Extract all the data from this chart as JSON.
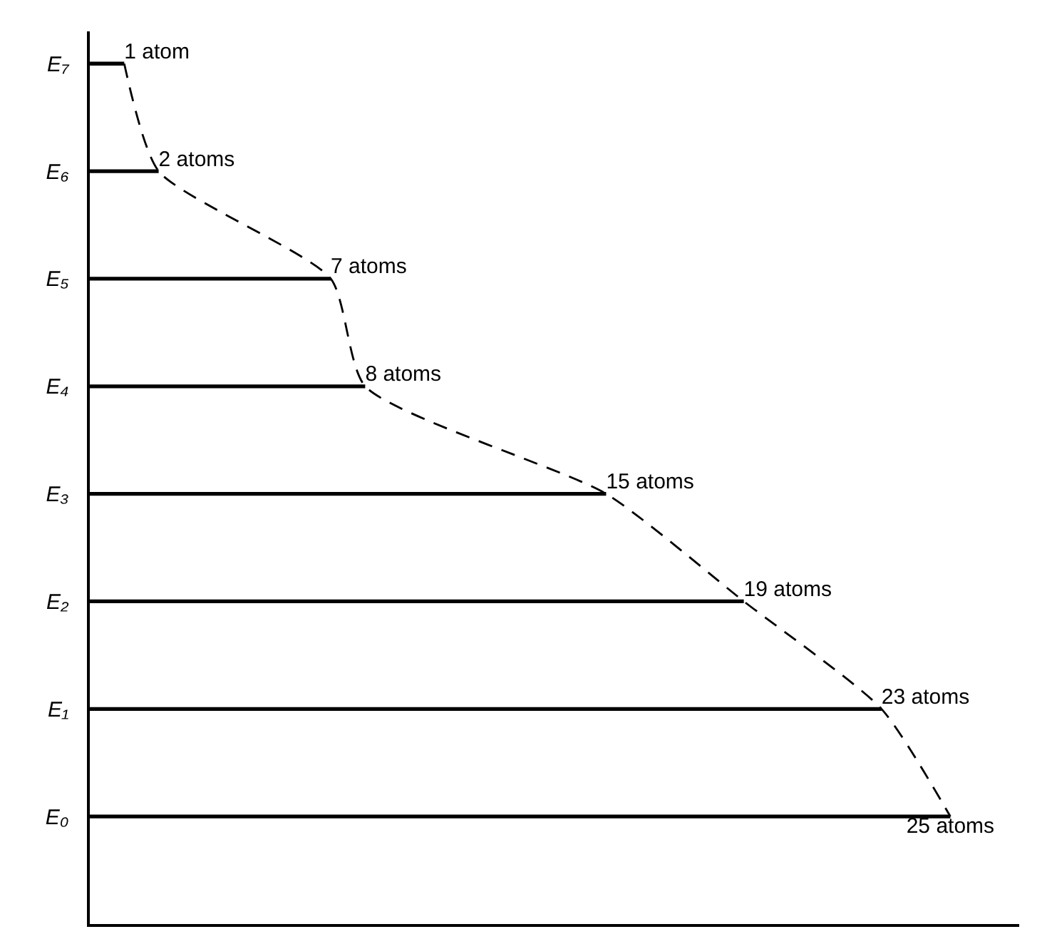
{
  "chart_data": {
    "type": "bar",
    "orientation": "horizontal",
    "tick_labels": "y",
    "categories": [
      "E₇",
      "E₆",
      "E₅",
      "E₄",
      "E₃",
      "E₂",
      "E₁",
      "E₀"
    ],
    "xlim": [
      0,
      27
    ],
    "series": [
      {
        "color": "#000000",
        "values": [
          1,
          2,
          7,
          8,
          15,
          19,
          23,
          25
        ],
        "value_labels": [
          "1 atom",
          "2 atoms",
          "7 atoms",
          "8 atoms",
          "15 atoms",
          "19 atoms",
          "23 atoms",
          "25 atoms"
        ]
      },
      {
        "type": "line",
        "color": "#000000",
        "line_style": "dashed",
        "values": [
          1,
          2,
          7,
          8,
          15,
          19,
          23,
          25
        ]
      }
    ]
  }
}
